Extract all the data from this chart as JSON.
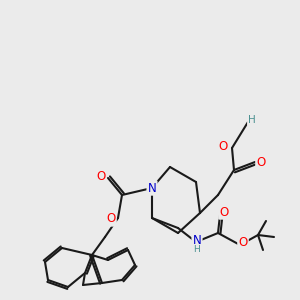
{
  "bg_color": "#ebebeb",
  "bond_color": "#1a1a1a",
  "bond_lw": 1.5,
  "atom_colors": {
    "O": "#ff0000",
    "N": "#0000cc",
    "H_teal": "#4a9090"
  },
  "font_size": 8.5,
  "font_size_small": 7.5
}
